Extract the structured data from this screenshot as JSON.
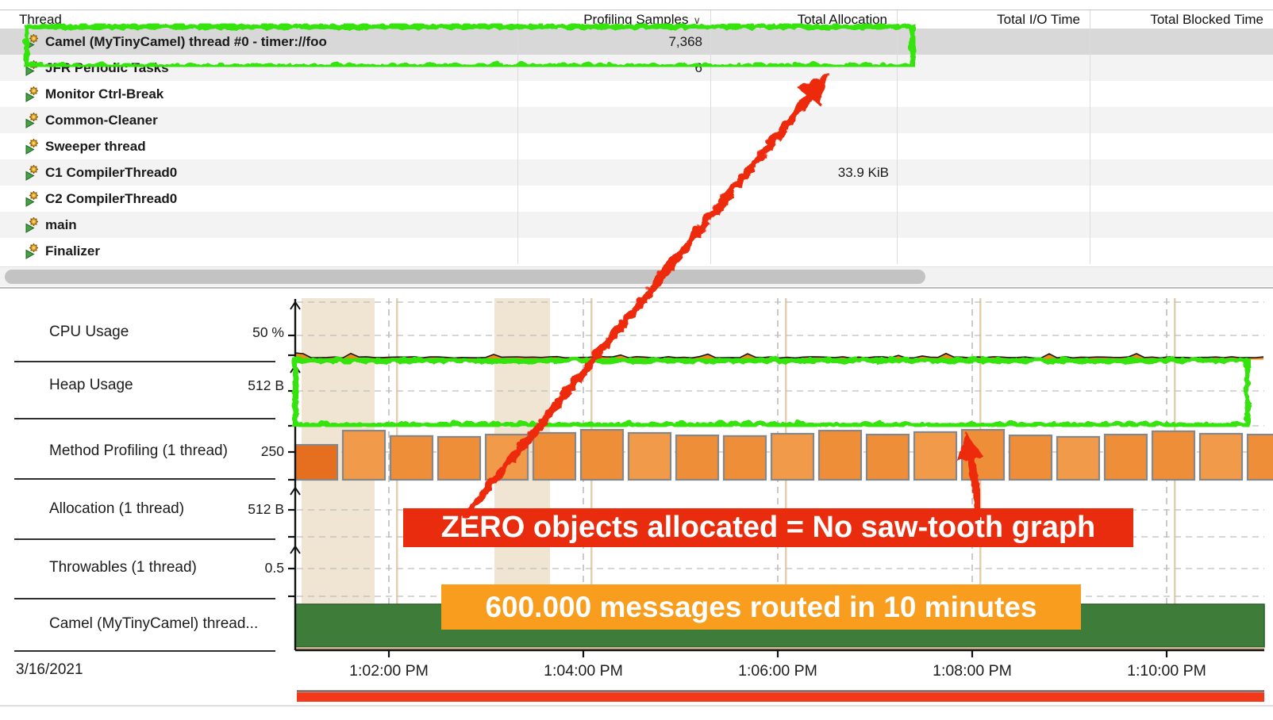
{
  "table": {
    "columns": [
      {
        "label": "Thread",
        "align": "left"
      },
      {
        "label": "Profiling Samples",
        "align": "right",
        "sorted": true
      },
      {
        "label": "Total Allocation",
        "align": "right"
      },
      {
        "label": "Total I/O Time",
        "align": "right"
      },
      {
        "label": "Total Blocked Time",
        "align": "right"
      }
    ],
    "sort_indicator": "∨",
    "rows": [
      {
        "thread": "Camel (MyTinyCamel) thread #0 - timer://foo",
        "profiling_samples": "7,368",
        "total_allocation": "",
        "total_io_time": "",
        "total_blocked_time": "",
        "selected": true
      },
      {
        "thread": "JFR Periodic Tasks",
        "profiling_samples": "6",
        "total_allocation": "",
        "total_io_time": "",
        "total_blocked_time": ""
      },
      {
        "thread": "Monitor Ctrl-Break",
        "profiling_samples": "",
        "total_allocation": "",
        "total_io_time": "",
        "total_blocked_time": ""
      },
      {
        "thread": "Common-Cleaner",
        "profiling_samples": "",
        "total_allocation": "",
        "total_io_time": "",
        "total_blocked_time": ""
      },
      {
        "thread": "Sweeper thread",
        "profiling_samples": "",
        "total_allocation": "",
        "total_io_time": "",
        "total_blocked_time": ""
      },
      {
        "thread": "C1 CompilerThread0",
        "profiling_samples": "",
        "total_allocation": "33.9 KiB",
        "total_io_time": "",
        "total_blocked_time": ""
      },
      {
        "thread": "C2 CompilerThread0",
        "profiling_samples": "",
        "total_allocation": "",
        "total_io_time": "",
        "total_blocked_time": ""
      },
      {
        "thread": "main",
        "profiling_samples": "",
        "total_allocation": "",
        "total_io_time": "",
        "total_blocked_time": ""
      },
      {
        "thread": "Finalizer",
        "profiling_samples": "",
        "total_allocation": "",
        "total_io_time": "",
        "total_blocked_time": ""
      }
    ]
  },
  "chart": {
    "lanes": [
      {
        "label": "CPU Usage",
        "tick": "50 %"
      },
      {
        "label": "Heap Usage",
        "tick": "512 B"
      },
      {
        "label": "Method Profiling (1 thread)",
        "tick": "250"
      },
      {
        "label": "Allocation (1 thread)",
        "tick": "512 B"
      },
      {
        "label": "Throwables (1 thread)",
        "tick": "0.5"
      },
      {
        "label": "Camel (MyTinyCamel) thread...",
        "tick": ""
      }
    ],
    "date_label": "3/16/2021",
    "time_ticks": [
      "1:02:00 PM",
      "1:04:00 PM",
      "1:06:00 PM",
      "1:08:00 PM",
      "1:10:00 PM"
    ]
  },
  "chart_data": [
    {
      "type": "line",
      "title": "CPU Usage",
      "ytick": "50 %",
      "x_ticks": [
        "1:02:00 PM",
        "1:04:00 PM",
        "1:06:00 PM",
        "1:08:00 PM",
        "1:10:00 PM"
      ],
      "description": "flat jagged line at roughly 5-10% CPU for the whole 10-minute recording"
    },
    {
      "type": "area",
      "title": "Heap Usage",
      "ytick": "512 B",
      "description": "empty chart - zero heap usage shown (highlighted by green box)"
    },
    {
      "type": "bar",
      "title": "Method Profiling (1 thread)",
      "ytick": "250",
      "values": [
        169,
        238,
        212,
        208,
        219,
        227,
        242,
        227,
        215,
        212,
        223,
        238,
        219,
        231,
        242,
        215,
        208,
        219,
        235,
        223,
        219
      ],
      "note": "uniform orange sampling bars, about 21 intervals"
    },
    {
      "type": "area",
      "title": "Allocation (1 thread)",
      "ytick": "512 B",
      "description": "empty chart - zero objects allocated"
    },
    {
      "type": "line",
      "title": "Throwables (1 thread)",
      "ytick": "0.5",
      "description": "empty chart - no throwables"
    },
    {
      "type": "span",
      "title": "Camel (MyTinyCamel) thread...",
      "description": "solid green activity bar spanning the full recording"
    }
  ],
  "annotations": {
    "red_banner": "ZERO objects allocated = No saw-tooth graph",
    "orange_banner": "600.000 messages routed in 10 minutes"
  },
  "colors": {
    "highlight_green": "#35e30d",
    "annotation_red": "#ee2b10",
    "red_banner_bg": "#e92c0e",
    "orange_banner_bg": "#f89d1d",
    "selected_row_bg": "#d8d8d8",
    "bar_orange": "#ee8e38",
    "bar_orange_light": "#f19a4a",
    "bar_orange_dark": "#e56f1e",
    "lane_green_bar": "#3e7c3a",
    "range_bar_red": "#f4391b"
  }
}
